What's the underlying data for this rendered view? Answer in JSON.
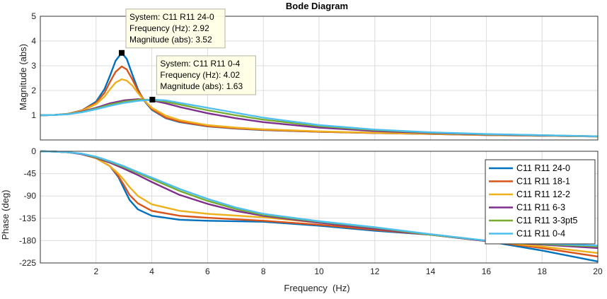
{
  "chart_data": {
    "type": "line",
    "title": "Bode Diagram",
    "xlabel": "Frequency  (Hz)",
    "xlim": [
      0,
      20
    ],
    "xticks": [
      2,
      4,
      6,
      8,
      10,
      12,
      14,
      16,
      18,
      20
    ],
    "grid": true,
    "magnitude": {
      "ylabel": "Magnitude (abs)",
      "ylim": [
        0,
        5
      ],
      "yticks": [
        1,
        2,
        3,
        4,
        5
      ],
      "series": [
        {
          "name": "C11 R11 24-0",
          "color": "#0072BD",
          "points": [
            [
              0,
              1.0
            ],
            [
              0.5,
              1.01
            ],
            [
              1.0,
              1.06
            ],
            [
              1.5,
              1.2
            ],
            [
              2.0,
              1.55
            ],
            [
              2.3,
              2.05
            ],
            [
              2.5,
              2.6
            ],
            [
              2.7,
              3.2
            ],
            [
              2.92,
              3.52
            ],
            [
              3.1,
              3.28
            ],
            [
              3.3,
              2.65
            ],
            [
              3.5,
              2.05
            ],
            [
              3.7,
              1.62
            ],
            [
              4.0,
              1.22
            ],
            [
              4.5,
              0.88
            ],
            [
              5.0,
              0.72
            ],
            [
              6.0,
              0.55
            ],
            [
              7.0,
              0.46
            ],
            [
              8.0,
              0.4
            ],
            [
              10.0,
              0.33
            ],
            [
              12.0,
              0.28
            ],
            [
              14.0,
              0.24
            ],
            [
              16.0,
              0.2
            ],
            [
              18.0,
              0.17
            ],
            [
              20.0,
              0.14
            ]
          ]
        },
        {
          "name": "C11 R11 18-1",
          "color": "#D95319",
          "points": [
            [
              0,
              1.0
            ],
            [
              0.5,
              1.01
            ],
            [
              1.0,
              1.06
            ],
            [
              1.5,
              1.2
            ],
            [
              2.0,
              1.5
            ],
            [
              2.3,
              1.9
            ],
            [
              2.5,
              2.35
            ],
            [
              2.7,
              2.75
            ],
            [
              2.92,
              2.97
            ],
            [
              3.1,
              2.85
            ],
            [
              3.3,
              2.45
            ],
            [
              3.5,
              2.0
            ],
            [
              3.7,
              1.65
            ],
            [
              4.0,
              1.25
            ],
            [
              4.5,
              0.9
            ],
            [
              5.0,
              0.74
            ],
            [
              6.0,
              0.56
            ],
            [
              7.0,
              0.47
            ],
            [
              8.0,
              0.41
            ],
            [
              10.0,
              0.33
            ],
            [
              12.0,
              0.28
            ],
            [
              14.0,
              0.24
            ],
            [
              16.0,
              0.2
            ],
            [
              18.0,
              0.17
            ],
            [
              20.0,
              0.14
            ]
          ]
        },
        {
          "name": "C11 R11 12-2",
          "color": "#EDB120",
          "points": [
            [
              0,
              1.0
            ],
            [
              0.5,
              1.01
            ],
            [
              1.0,
              1.06
            ],
            [
              1.5,
              1.18
            ],
            [
              2.0,
              1.45
            ],
            [
              2.3,
              1.75
            ],
            [
              2.5,
              2.05
            ],
            [
              2.7,
              2.32
            ],
            [
              2.92,
              2.45
            ],
            [
              3.1,
              2.4
            ],
            [
              3.3,
              2.2
            ],
            [
              3.5,
              1.9
            ],
            [
              3.7,
              1.63
            ],
            [
              4.0,
              1.3
            ],
            [
              4.5,
              0.98
            ],
            [
              5.0,
              0.8
            ],
            [
              6.0,
              0.6
            ],
            [
              7.0,
              0.5
            ],
            [
              8.0,
              0.43
            ],
            [
              10.0,
              0.35
            ],
            [
              12.0,
              0.29
            ],
            [
              14.0,
              0.25
            ],
            [
              16.0,
              0.21
            ],
            [
              18.0,
              0.17
            ],
            [
              20.0,
              0.14
            ]
          ]
        },
        {
          "name": "C11 R11 6-3",
          "color": "#7E2F8E",
          "points": [
            [
              0,
              1.0
            ],
            [
              0.5,
              1.01
            ],
            [
              1.0,
              1.05
            ],
            [
              1.5,
              1.15
            ],
            [
              2.0,
              1.3
            ],
            [
              2.5,
              1.48
            ],
            [
              3.0,
              1.6
            ],
            [
              3.5,
              1.65
            ],
            [
              4.0,
              1.6
            ],
            [
              4.5,
              1.48
            ],
            [
              5.0,
              1.33
            ],
            [
              6.0,
              1.08
            ],
            [
              7.0,
              0.88
            ],
            [
              8.0,
              0.72
            ],
            [
              10.0,
              0.5
            ],
            [
              12.0,
              0.36
            ],
            [
              14.0,
              0.28
            ],
            [
              16.0,
              0.22
            ],
            [
              18.0,
              0.18
            ],
            [
              20.0,
              0.15
            ]
          ]
        },
        {
          "name": "C11 R11 3-3pt5",
          "color": "#77AC30",
          "points": [
            [
              0,
              1.0
            ],
            [
              0.5,
              1.01
            ],
            [
              1.0,
              1.05
            ],
            [
              1.5,
              1.13
            ],
            [
              2.0,
              1.27
            ],
            [
              2.5,
              1.43
            ],
            [
              3.0,
              1.55
            ],
            [
              3.5,
              1.62
            ],
            [
              4.0,
              1.63
            ],
            [
              4.5,
              1.55
            ],
            [
              5.0,
              1.43
            ],
            [
              6.0,
              1.2
            ],
            [
              7.0,
              1.0
            ],
            [
              8.0,
              0.82
            ],
            [
              10.0,
              0.56
            ],
            [
              12.0,
              0.4
            ],
            [
              14.0,
              0.3
            ],
            [
              16.0,
              0.23
            ],
            [
              18.0,
              0.19
            ],
            [
              20.0,
              0.15
            ]
          ]
        },
        {
          "name": "C11 R11 0-4",
          "color": "#4DBEEE",
          "points": [
            [
              0,
              1.0
            ],
            [
              0.5,
              1.01
            ],
            [
              1.0,
              1.04
            ],
            [
              1.5,
              1.12
            ],
            [
              2.0,
              1.24
            ],
            [
              2.5,
              1.38
            ],
            [
              3.0,
              1.5
            ],
            [
              3.5,
              1.58
            ],
            [
              4.02,
              1.63
            ],
            [
              4.5,
              1.6
            ],
            [
              5.0,
              1.5
            ],
            [
              6.0,
              1.3
            ],
            [
              7.0,
              1.1
            ],
            [
              8.0,
              0.9
            ],
            [
              10.0,
              0.6
            ],
            [
              12.0,
              0.42
            ],
            [
              14.0,
              0.31
            ],
            [
              16.0,
              0.24
            ],
            [
              18.0,
              0.19
            ],
            [
              20.0,
              0.15
            ]
          ]
        }
      ]
    },
    "phase": {
      "ylabel": "Phase (deg)",
      "ylim": [
        -225,
        0
      ],
      "yticks": [
        0,
        -45,
        -90,
        -135,
        -180,
        -225
      ],
      "series": [
        {
          "name": "C11 R11 24-0",
          "color": "#0072BD",
          "points": [
            [
              0,
              0
            ],
            [
              0.5,
              -0.5
            ],
            [
              1.0,
              -2
            ],
            [
              1.5,
              -6
            ],
            [
              2.0,
              -14
            ],
            [
              2.5,
              -30
            ],
            [
              2.8,
              -52
            ],
            [
              3.0,
              -75
            ],
            [
              3.2,
              -98
            ],
            [
              3.5,
              -117
            ],
            [
              4.0,
              -130
            ],
            [
              5.0,
              -138
            ],
            [
              6.0,
              -140
            ],
            [
              8.0,
              -142
            ],
            [
              10.0,
              -150
            ],
            [
              12.0,
              -160
            ],
            [
              14.0,
              -168
            ],
            [
              16.0,
              -181
            ],
            [
              18.0,
              -200
            ],
            [
              20.0,
              -222
            ]
          ]
        },
        {
          "name": "C11 R11 18-1",
          "color": "#D95319",
          "points": [
            [
              0,
              0
            ],
            [
              0.5,
              -0.5
            ],
            [
              1.0,
              -2
            ],
            [
              1.5,
              -6
            ],
            [
              2.0,
              -14
            ],
            [
              2.5,
              -30
            ],
            [
              2.8,
              -50
            ],
            [
              3.0,
              -68
            ],
            [
              3.2,
              -88
            ],
            [
              3.5,
              -105
            ],
            [
              4.0,
              -120
            ],
            [
              5.0,
              -130
            ],
            [
              6.0,
              -134
            ],
            [
              8.0,
              -140
            ],
            [
              10.0,
              -148
            ],
            [
              12.0,
              -158
            ],
            [
              14.0,
              -168
            ],
            [
              16.0,
              -181
            ],
            [
              18.0,
              -195
            ],
            [
              20.0,
              -212
            ]
          ]
        },
        {
          "name": "C11 R11 12-2",
          "color": "#EDB120",
          "points": [
            [
              0,
              0
            ],
            [
              0.5,
              -0.5
            ],
            [
              1.0,
              -2
            ],
            [
              1.5,
              -6
            ],
            [
              2.0,
              -14
            ],
            [
              2.5,
              -30
            ],
            [
              2.8,
              -45
            ],
            [
              3.0,
              -58
            ],
            [
              3.2,
              -72
            ],
            [
              3.5,
              -90
            ],
            [
              4.0,
              -107
            ],
            [
              5.0,
              -120
            ],
            [
              6.0,
              -126
            ],
            [
              8.0,
              -133
            ],
            [
              10.0,
              -144
            ],
            [
              12.0,
              -156
            ],
            [
              14.0,
              -167
            ],
            [
              16.0,
              -181
            ],
            [
              18.0,
              -192
            ],
            [
              20.0,
              -205
            ]
          ]
        },
        {
          "name": "C11 R11 6-3",
          "color": "#7E2F8E",
          "points": [
            [
              0,
              0
            ],
            [
              0.5,
              -0.5
            ],
            [
              1.0,
              -2
            ],
            [
              1.5,
              -6
            ],
            [
              2.0,
              -13
            ],
            [
              2.5,
              -23
            ],
            [
              3.0,
              -35
            ],
            [
              3.5,
              -48
            ],
            [
              4.0,
              -62
            ],
            [
              5.0,
              -88
            ],
            [
              6.0,
              -106
            ],
            [
              7.0,
              -120
            ],
            [
              8.0,
              -130
            ],
            [
              10.0,
              -144
            ],
            [
              12.0,
              -156
            ],
            [
              14.0,
              -168
            ],
            [
              16.0,
              -181
            ],
            [
              18.0,
              -188
            ],
            [
              20.0,
              -195
            ]
          ]
        },
        {
          "name": "C11 R11 3-3pt5",
          "color": "#77AC30",
          "points": [
            [
              0,
              0
            ],
            [
              0.5,
              -0.5
            ],
            [
              1.0,
              -2
            ],
            [
              1.5,
              -5
            ],
            [
              2.0,
              -12
            ],
            [
              2.5,
              -21
            ],
            [
              3.0,
              -32
            ],
            [
              3.5,
              -44
            ],
            [
              4.0,
              -56
            ],
            [
              5.0,
              -80
            ],
            [
              6.0,
              -100
            ],
            [
              7.0,
              -116
            ],
            [
              8.0,
              -128
            ],
            [
              10.0,
              -142
            ],
            [
              12.0,
              -154
            ],
            [
              14.0,
              -168
            ],
            [
              16.0,
              -180
            ],
            [
              18.0,
              -187
            ],
            [
              20.0,
              -192
            ]
          ]
        },
        {
          "name": "C11 R11 0-4",
          "color": "#4DBEEE",
          "points": [
            [
              0,
              0
            ],
            [
              0.5,
              -0.5
            ],
            [
              1.0,
              -2
            ],
            [
              1.5,
              -5
            ],
            [
              2.0,
              -11
            ],
            [
              2.5,
              -20
            ],
            [
              3.0,
              -30
            ],
            [
              3.5,
              -42
            ],
            [
              4.0,
              -53
            ],
            [
              5.0,
              -76
            ],
            [
              6.0,
              -96
            ],
            [
              7.0,
              -113
            ],
            [
              8.0,
              -126
            ],
            [
              10.0,
              -141
            ],
            [
              12.0,
              -153
            ],
            [
              14.0,
              -167
            ],
            [
              16.0,
              -180
            ],
            [
              18.0,
              -186
            ],
            [
              20.0,
              -190
            ]
          ]
        }
      ]
    },
    "datatips": [
      {
        "series": "C11 R11 24-0",
        "x": 2.92,
        "y": 3.52,
        "lines": [
          "System: C11 R11 24-0",
          "Frequency (Hz): 2.92",
          "Magnitude (abs): 3.52"
        ],
        "placement": "above-right"
      },
      {
        "series": "C11 R11 0-4",
        "x": 4.02,
        "y": 1.63,
        "lines": [
          "System: C11 R11 0-4",
          "Frequency (Hz): 4.02",
          "Magnitude (abs): 1.63"
        ],
        "placement": "above-right"
      }
    ],
    "legend": {
      "location": "lower-right of phase plot"
    }
  }
}
